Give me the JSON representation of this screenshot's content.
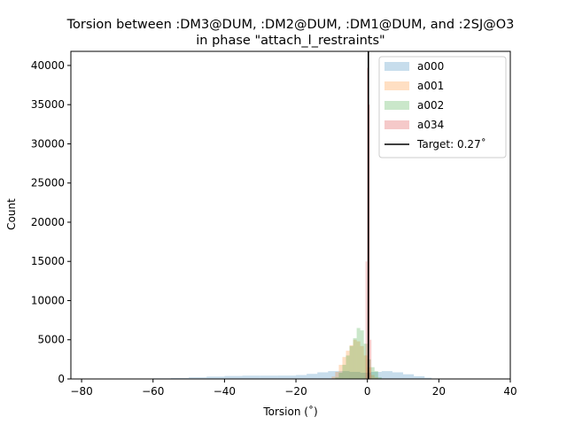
{
  "chart_data": {
    "type": "histogram",
    "title_line1": "Torsion between :DM3@DUM, :DM2@DUM, :DM1@DUM, and :2SJ@O3",
    "title_line2": "in phase \"attach_l_restraints\"",
    "xlabel": "Torsion (˚)",
    "ylabel": "Count",
    "xlim": [
      -83,
      40
    ],
    "ylim": [
      0,
      41800
    ],
    "xticks": [
      -80,
      -60,
      -40,
      -20,
      0,
      20,
      40
    ],
    "yticks": [
      0,
      5000,
      10000,
      15000,
      20000,
      25000,
      30000,
      35000,
      40000
    ],
    "legend_position": "top-right",
    "series": [
      {
        "name": "a000",
        "color": "#1f77b4",
        "bins": [
          [
            -60,
            -55,
            80
          ],
          [
            -55,
            -50,
            120
          ],
          [
            -50,
            -45,
            200
          ],
          [
            -45,
            -40,
            300
          ],
          [
            -40,
            -35,
            380
          ],
          [
            -35,
            -30,
            420
          ],
          [
            -30,
            -25,
            420
          ],
          [
            -25,
            -20,
            430
          ],
          [
            -20,
            -17,
            500
          ],
          [
            -17,
            -14,
            650
          ],
          [
            -14,
            -11,
            850
          ],
          [
            -11,
            -8,
            1000
          ],
          [
            -8,
            -5,
            1000
          ],
          [
            -5,
            -2,
            900
          ],
          [
            -2,
            1,
            800
          ],
          [
            1,
            4,
            900
          ],
          [
            4,
            7,
            1000
          ],
          [
            7,
            10,
            850
          ],
          [
            10,
            13,
            600
          ],
          [
            13,
            16,
            350
          ],
          [
            16,
            18,
            150
          ]
        ]
      },
      {
        "name": "a001",
        "color": "#ff7f0e",
        "bins": [
          [
            -10,
            -9,
            300
          ],
          [
            -9,
            -8,
            900
          ],
          [
            -8,
            -7,
            1800
          ],
          [
            -7,
            -6,
            2800
          ],
          [
            -6,
            -5,
            3600
          ],
          [
            -5,
            -4,
            4300
          ],
          [
            -4,
            -3,
            5000
          ],
          [
            -3,
            -2,
            4800
          ],
          [
            -2,
            -1,
            4200
          ],
          [
            -1,
            0,
            3000
          ],
          [
            0,
            1,
            1500
          ],
          [
            1,
            2,
            500
          ],
          [
            2,
            3,
            200
          ]
        ]
      },
      {
        "name": "a002",
        "color": "#2ca02c",
        "bins": [
          [
            -9,
            -8,
            200
          ],
          [
            -8,
            -7,
            800
          ],
          [
            -7,
            -6,
            1800
          ],
          [
            -6,
            -5,
            3000
          ],
          [
            -5,
            -4,
            4200
          ],
          [
            -4,
            -3,
            5200
          ],
          [
            -3,
            -2,
            6500
          ],
          [
            -2,
            -1,
            6200
          ],
          [
            -1,
            0,
            4500
          ],
          [
            0,
            1,
            2500
          ],
          [
            1,
            2,
            1500
          ],
          [
            2,
            3,
            1000
          ],
          [
            3,
            4,
            200
          ]
        ]
      },
      {
        "name": "a034",
        "color": "#d62728",
        "bins": [
          [
            -0.5,
            -0.1,
            15000
          ],
          [
            -0.1,
            0.3,
            39700
          ],
          [
            0.3,
            0.7,
            35000
          ],
          [
            0.7,
            1.1,
            5000
          ]
        ]
      }
    ],
    "target": {
      "label": "Target: 0.27˚",
      "value": 0.27,
      "color": "#000000"
    }
  }
}
